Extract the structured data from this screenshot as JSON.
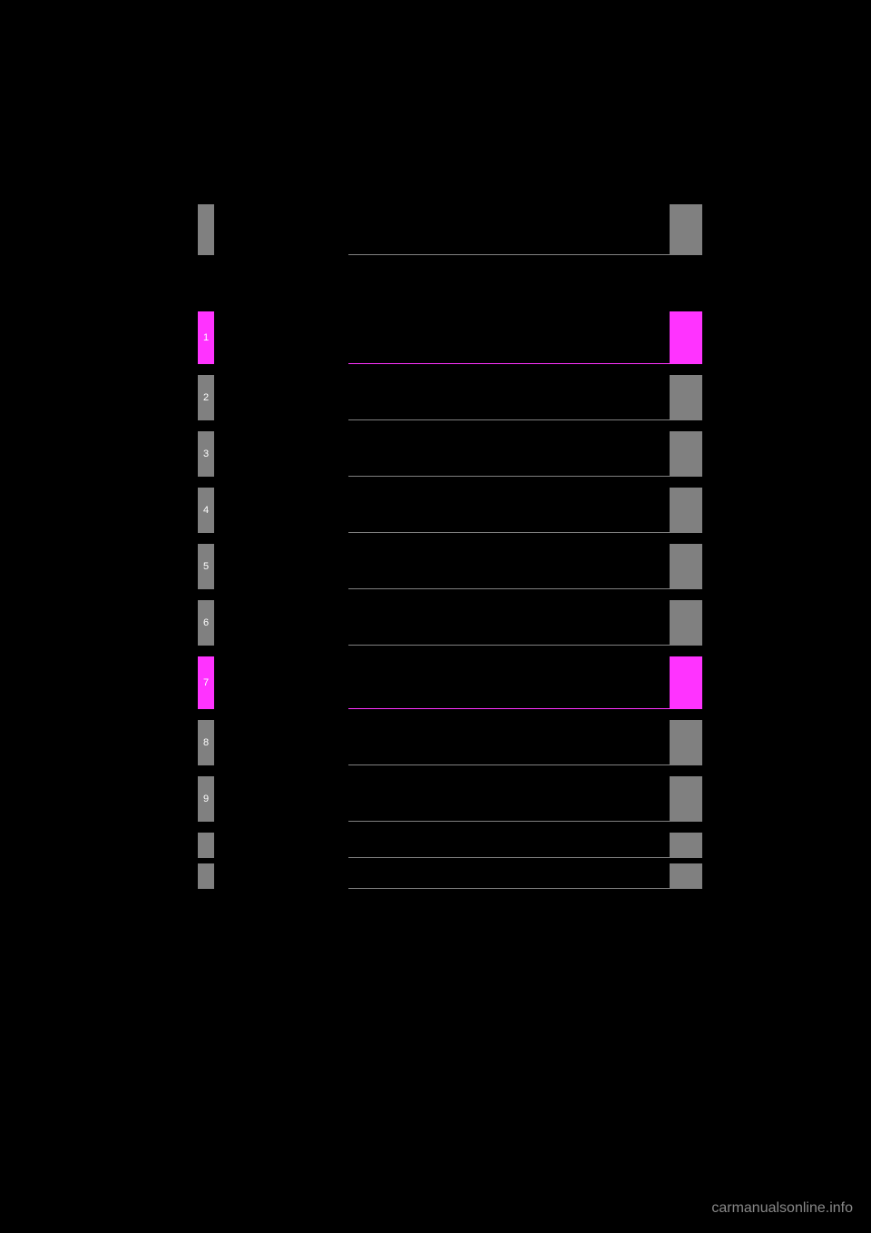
{
  "layout": {
    "background_color": "#000000",
    "tab_color_default": "#808080",
    "tab_color_highlight": "#ff33ff",
    "border_color_default": "#808080",
    "border_color_highlight": "#ff33ff",
    "text_color": "#ffffff"
  },
  "rows": [
    {
      "num": "1",
      "highlight": true
    },
    {
      "num": "2",
      "highlight": false
    },
    {
      "num": "3",
      "highlight": false
    },
    {
      "num": "4",
      "highlight": false
    },
    {
      "num": "5",
      "highlight": false
    },
    {
      "num": "6",
      "highlight": false
    },
    {
      "num": "7",
      "highlight": true
    },
    {
      "num": "8",
      "highlight": false
    },
    {
      "num": "9",
      "highlight": false
    },
    {
      "num": "",
      "highlight": false,
      "short": true
    },
    {
      "num": "",
      "highlight": false,
      "short": true
    }
  ],
  "watermark": "carmanualsonline.info"
}
